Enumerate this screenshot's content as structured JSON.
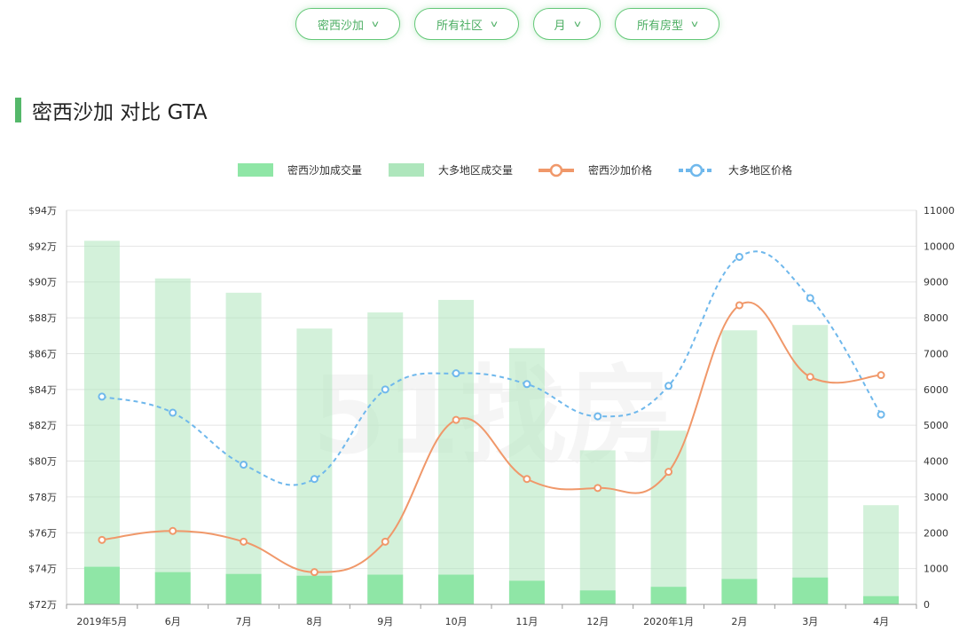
{
  "filters": {
    "region": "密西沙加",
    "community": "所有社区",
    "period": "月",
    "house_type": "所有房型"
  },
  "page_title": "密西沙加 对比 GTA",
  "watermark": "51找房",
  "colors": {
    "accent": "#55b86a",
    "local_volume": "#8fe6a6",
    "gta_volume": "#aee6bc",
    "local_price": "#f0986a",
    "gta_price": "#6fb8ec"
  },
  "chart_data": {
    "type": "bar",
    "categories": [
      "2019年5月",
      "6月",
      "7月",
      "8月",
      "9月",
      "10月",
      "11月",
      "12月",
      "2020年1月",
      "2月",
      "3月",
      "4月"
    ],
    "series": [
      {
        "name": "密西沙加成交量",
        "type": "bar",
        "axis": "right",
        "values": [
          1050,
          900,
          850,
          800,
          830,
          830,
          660,
          390,
          490,
          710,
          750,
          230
        ]
      },
      {
        "name": "大多地区成交量",
        "type": "bar",
        "axis": "right",
        "values": [
          10150,
          9100,
          8700,
          7700,
          8150,
          8500,
          7150,
          4300,
          4850,
          7650,
          7800,
          2770
        ]
      },
      {
        "name": "密西沙加价格",
        "type": "line",
        "axis": "left",
        "values": [
          75.6,
          76.1,
          75.5,
          73.8,
          75.5,
          82.3,
          79.0,
          78.5,
          79.4,
          88.7,
          84.7,
          84.8
        ]
      },
      {
        "name": "大多地区价格",
        "type": "line",
        "axis": "left",
        "values": [
          83.6,
          82.7,
          79.8,
          79.0,
          84.0,
          84.9,
          84.3,
          82.5,
          84.2,
          91.4,
          89.1,
          82.6
        ]
      }
    ],
    "y_left": {
      "min": 72,
      "max": 94,
      "step": 2,
      "ticks": [
        "$94万",
        "$92万",
        "$90万",
        "$88万",
        "$86万",
        "$84万",
        "$82万",
        "$80万",
        "$78万",
        "$76万",
        "$74万",
        "$72万"
      ]
    },
    "y_right": {
      "min": 0,
      "max": 11000,
      "step": 1000,
      "ticks": [
        "11000",
        "10000",
        "9000",
        "8000",
        "7000",
        "6000",
        "5000",
        "4000",
        "3000",
        "2000",
        "1000",
        "0"
      ]
    },
    "legend": "top",
    "grid": true
  }
}
